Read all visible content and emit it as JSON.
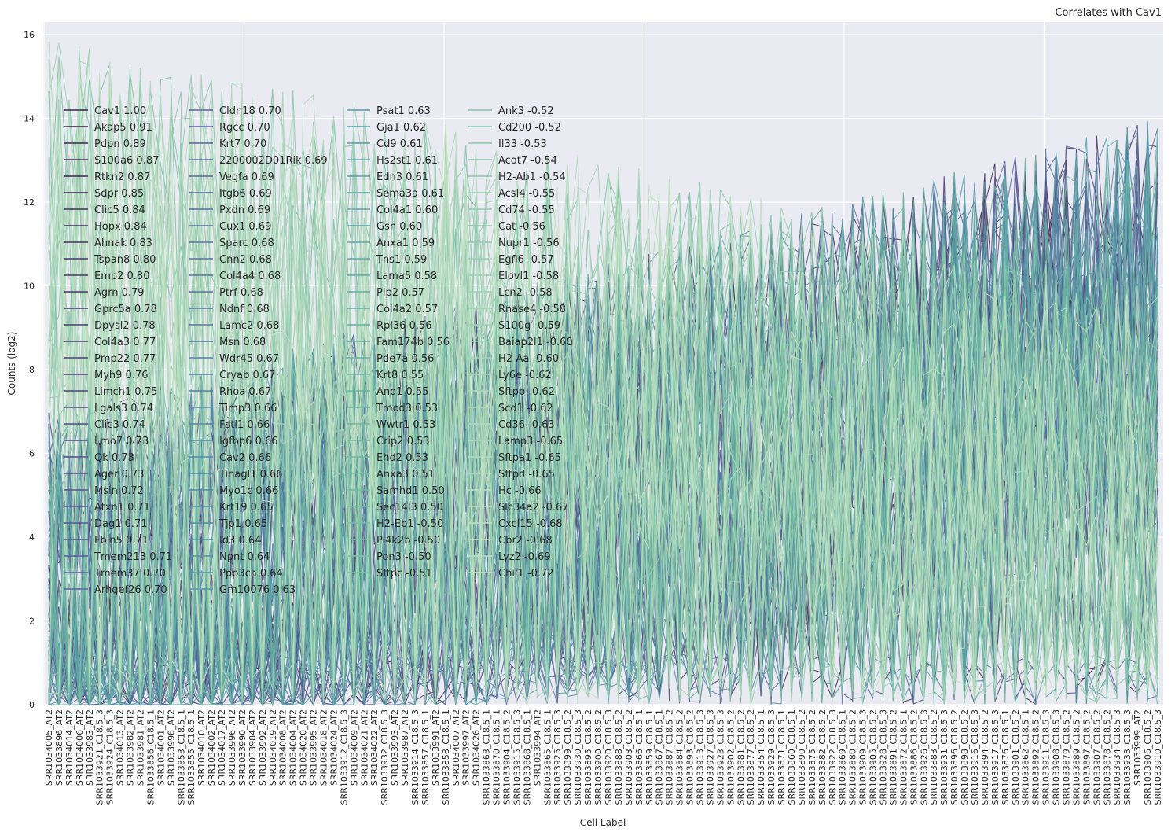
{
  "chart_data": {
    "type": "line",
    "title": "Correlates with Cav1",
    "xlabel": "Cell Label",
    "ylabel": "Counts (log2)",
    "ylim": [
      0,
      16.3
    ],
    "yticks": [
      0,
      2,
      4,
      6,
      8,
      10,
      12,
      14,
      16
    ],
    "grid": true,
    "legend_location": "upper-left, 4 columns",
    "x_tick_labels": [
      "SRR1034005_AT2",
      "SRR1033896_AT2",
      "SRR1034014_AT2",
      "SRR1034006_AT2",
      "SRR1033983_AT2",
      "SRR1033921_C18.5_3",
      "SRR1033924_C18.5_3",
      "SRR1034013_AT2",
      "SRR1033982_AT2",
      "SRR1033981_AT2",
      "SRR1033856_C18.5_1",
      "SRR1034001_AT2",
      "SRR1033998_AT2",
      "SRR1033853_C18.5_1",
      "SRR1033855_C18.5_1",
      "SRR1034010_AT2",
      "SRR1034002_AT2",
      "SRR1034017_AT2",
      "SRR1033996_AT2",
      "SRR1033990_AT2",
      "SRR1033984_AT2",
      "SRR1033992_AT2",
      "SRR1034019_AT2",
      "SRR1034008_AT2",
      "SRR1034004_AT2",
      "SRR1034020_AT2",
      "SRR1033995_AT2",
      "SRR1034018_AT2",
      "SRR1034024_AT2",
      "SRR1033912_C18.5_3",
      "SRR1034009_AT2",
      "SRR1034021_AT2",
      "SRR1034022_AT2",
      "SRR1033932_C18.5_3",
      "SRR1033993_AT2",
      "SRR1033987_AT2",
      "SRR1033914_C18.5_3",
      "SRR1033857_C18.5_1",
      "SRR1033991_AT2",
      "SRR1033858_C18.5_1",
      "SRR1034007_AT2",
      "SRR1033997_AT2",
      "SRR1034026_AT2",
      "SRR1033863_C18.5_1",
      "SRR1033870_C18.5_1",
      "SRR1033904_C18.5_2",
      "SRR1033915_C18.5_3",
      "SRR1033868_C18.5_1",
      "SRR1033994_AT2",
      "SRR1033865_C18.5_1",
      "SRR1033925_C18.5_3",
      "SRR1033899_C18.5_2",
      "SRR1033930_C18.5_3",
      "SRR1033895_C18.5_2",
      "SRR1033900_C18.5_2",
      "SRR1033920_C18.5_3",
      "SRR1033888_C18.5_2",
      "SRR1033903_C18.5_2",
      "SRR1033866_C18.5_1",
      "SRR1033859_C18.5_1",
      "SRR1033867_C18.5_1",
      "SRR1033887_C18.5_2",
      "SRR1033884_C18.5_2",
      "SRR1033893_C18.5_2",
      "SRR1033913_C18.5_3",
      "SRR1033927_C18.5_3",
      "SRR1033923_C18.5_3",
      "SRR1033902_C18.5_2",
      "SRR1033881_C18.5_2",
      "SRR1033877_C18.5_2",
      "SRR1033854_C18.5_1",
      "SRR1033929_C18.5_3",
      "SRR1033871_C18.5_1",
      "SRR1033860_C18.5_1",
      "SRR1033890_C18.5_2",
      "SRR1033875_C18.5_2",
      "SRR1033882_C18.5_2",
      "SRR1033922_C18.5_3",
      "SRR1033869_C18.5_1",
      "SRR1033880_C18.5_2",
      "SRR1033909_C18.5_3",
      "SRR1033905_C18.5_2",
      "SRR1033928_C18.5_3",
      "SRR1033891_C18.5_2",
      "SRR1033872_C18.5_1",
      "SRR1033886_C18.5_2",
      "SRR1033926_C18.5_3",
      "SRR1033883_C18.5_2",
      "SRR1033931_C18.5_3",
      "SRR1033896_C18.5_2",
      "SRR1033898_C18.5_2",
      "SRR1033916_C18.5_3",
      "SRR1033894_C18.5_2",
      "SRR1033917_C18.5_3",
      "SRR1033876_C18.5_1",
      "SRR1033901_C18.5_2",
      "SRR1033862_C18.5_1",
      "SRR1033892_C18.5_2",
      "SRR1033911_C18.5_3",
      "SRR1033908_C18.5_3",
      "SRR1033879_C18.5_2",
      "SRR1033889_C18.5_2",
      "SRR1033897_C18.5_2",
      "SRR1033907_C18.5_2",
      "SRR1033878_C18.5_2",
      "SRR1033934_C18.5_3",
      "SRR1033933_C18.5_3",
      "SRR1033999_AT2",
      "SRR1033906_C18.5_2",
      "SRR1033910_C18.5_3"
    ],
    "legend_columns": [
      [
        "Cav1 1.00",
        "Akap5 0.91",
        "Pdpn 0.89",
        "S100a6 0.87",
        "Rtkn2 0.87",
        "Sdpr 0.85",
        "Clic5 0.84",
        "Hopx 0.84",
        "Ahnak 0.83",
        "Tspan8 0.80",
        "Emp2 0.80",
        "Agrn 0.79",
        "Gprc5a 0.78",
        "Dpysl2 0.78",
        "Col4a3 0.77",
        "Pmp22 0.77",
        "Myh9 0.76",
        "Limch1 0.75",
        "Lgals3 0.74",
        "Clic3 0.74",
        "Lmo7 0.73",
        "Qk 0.73",
        "Ager 0.73",
        "Msln 0.72",
        "Atxn1 0.71",
        "Dag1 0.71",
        "Fbln5 0.71",
        "Tmem213 0.71",
        "Tmem37 0.70",
        "Arhgef26 0.70"
      ],
      [
        "Cldn18 0.70",
        "Rgcc 0.70",
        "Krt7 0.70",
        "2200002D01Rik 0.69",
        "Vegfa 0.69",
        "Itgb6 0.69",
        "Pxdn 0.69",
        "Cux1 0.69",
        "Sparc 0.68",
        "Cnn2 0.68",
        "Col4a4 0.68",
        "Ptrf 0.68",
        "Ndnf 0.68",
        "Lamc2 0.68",
        "Msn 0.68",
        "Wdr45 0.67",
        "Cryab 0.67",
        "Rhoa 0.67",
        "Timp3 0.66",
        "Fstl1 0.66",
        "Igfbp6 0.66",
        "Cav2 0.66",
        "Tinagl1 0.66",
        "Myo1c 0.66",
        "Krt19 0.65",
        "Tjp1 0.65",
        "Id3 0.64",
        "Npnt 0.64",
        "Ppp3ca 0.64",
        "Gm10076 0.63"
      ],
      [
        "Psat1 0.63",
        "Gja1 0.62",
        "Cd9 0.61",
        "Hs2st1 0.61",
        "Edn3 0.61",
        "Sema3a 0.61",
        "Col4a1 0.60",
        "Gsn 0.60",
        "Anxa1 0.59",
        "Tns1 0.59",
        "Lama5 0.58",
        "Plp2 0.57",
        "Col4a2 0.57",
        "Rpl36 0.56",
        "Fam174b 0.56",
        "Pde7a 0.56",
        "Krt8 0.55",
        "Ano1 0.55",
        "Tmod3 0.53",
        "Wwtr1 0.53",
        "Crip2 0.53",
        "Ehd2 0.53",
        "Anxa3 0.51",
        "Samhd1 0.50",
        "Sec14l3 0.50",
        "H2-Eb1 -0.50",
        "Pi4k2b -0.50",
        "Pon3 -0.50",
        "Sftpc -0.51"
      ],
      [
        "Ank3 -0.52",
        "Cd200 -0.52",
        "Il33 -0.53",
        "Acot7 -0.54",
        "H2-Ab1 -0.54",
        "Acsl4 -0.55",
        "Cd74 -0.55",
        "Cat -0.56",
        "Nupr1 -0.56",
        "Egfl6 -0.57",
        "Elovl1 -0.58",
        "Lcn2 -0.58",
        "Rnase4 -0.58",
        "S100g -0.59",
        "Baiap2l1 -0.60",
        "H2-Aa -0.60",
        "Ly6e -0.62",
        "Sftpb -0.62",
        "Scd1 -0.62",
        "Cd36 -0.63",
        "Lamp3 -0.65",
        "Sftpa1 -0.65",
        "Sftpd -0.65",
        "Hc -0.66",
        "Slc34a2 -0.67",
        "Cxcl15 -0.68",
        "Cbr2 -0.68",
        "Lyz2 -0.69",
        "Chil1 -0.72"
      ]
    ],
    "palette": {
      "start": "#3b1f45",
      "mid1": "#5a5f9c",
      "mid2": "#4f97a7",
      "mid3": "#7cc3a3",
      "end": "#c9e4c5",
      "background": "#eaeaf2",
      "grid": "#ffffff"
    }
  }
}
